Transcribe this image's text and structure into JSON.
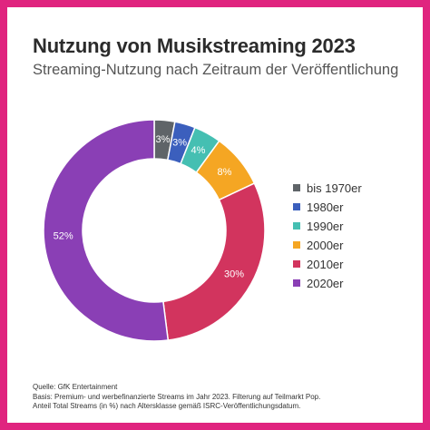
{
  "header": {
    "title": "Nutzung von Musikstreaming 2023",
    "subtitle": "Streaming-Nutzung nach Zeitraum der Veröffentlichung"
  },
  "chart_data": {
    "type": "pie",
    "variant": "donut",
    "title": "Nutzung von Musikstreaming 2023",
    "subtitle": "Streaming-Nutzung nach Zeitraum der Veröffentlichung",
    "legend_position": "right",
    "slices": [
      {
        "name": "bis 1970er",
        "value": 3,
        "label": "3%",
        "color": "#5f6468"
      },
      {
        "name": "1980er",
        "value": 3,
        "label": "3%",
        "color": "#3b5fbd"
      },
      {
        "name": "1990er",
        "value": 4,
        "label": "4%",
        "color": "#45bfb2"
      },
      {
        "name": "2000er",
        "value": 8,
        "label": "8%",
        "color": "#f5a623"
      },
      {
        "name": "2010er",
        "value": 30,
        "label": "30%",
        "color": "#d2345e"
      },
      {
        "name": "2020er",
        "value": 52,
        "label": "52%",
        "color": "#8a3fb5"
      }
    ]
  },
  "footer": {
    "source_lines": [
      "Quelle: GfK Entertainment",
      "Basis: Premium- und werbefinanzierte Streams im Jahr 2023. Filterung auf Teilmarkt Pop.",
      "Anteil Total Streams (in %) nach Altersklasse gemäß ISRC-Veröffentlichungsdatum."
    ]
  },
  "colors": {
    "border": "#e0247f"
  }
}
